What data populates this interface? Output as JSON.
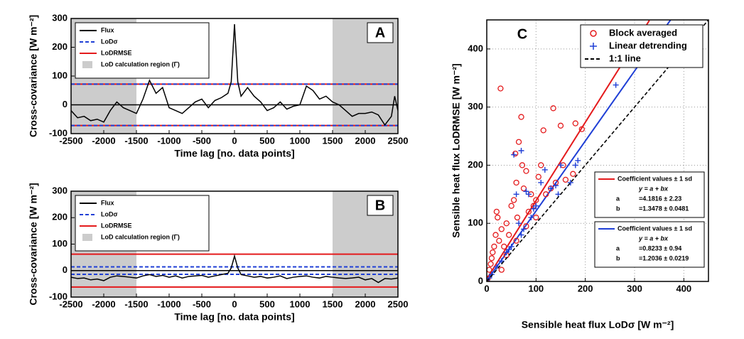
{
  "chart_data": [
    {
      "type": "line",
      "label": "A",
      "xlabel": "Time lag [no. data points]",
      "ylabel": "Cross-covariance [W m⁻²]",
      "xlim": [
        -2500,
        2500
      ],
      "ylim": [
        -100,
        300
      ],
      "xticks": [
        -2500,
        -2000,
        -1500,
        -1000,
        -500,
        0,
        500,
        1000,
        1500,
        2000,
        2500
      ],
      "yticks": [
        -100,
        0,
        100,
        200,
        300
      ],
      "series": [
        {
          "name": "Flux",
          "color": "#000000",
          "style": "solid",
          "x": [
            -2500,
            -2400,
            -2300,
            -2200,
            -2100,
            -2000,
            -1900,
            -1800,
            -1700,
            -1600,
            -1500,
            -1400,
            -1300,
            -1200,
            -1100,
            -1000,
            -900,
            -800,
            -700,
            -600,
            -500,
            -400,
            -300,
            -200,
            -100,
            -50,
            0,
            50,
            100,
            200,
            300,
            400,
            500,
            600,
            700,
            800,
            900,
            1000,
            1100,
            1200,
            1300,
            1400,
            1500,
            1600,
            1700,
            1800,
            1900,
            2000,
            2100,
            2200,
            2300,
            2400,
            2450,
            2500
          ],
          "values": [
            -20,
            -45,
            -40,
            -55,
            -50,
            -60,
            -20,
            10,
            -10,
            -20,
            -30,
            20,
            85,
            40,
            60,
            -10,
            -20,
            -30,
            -10,
            10,
            20,
            -10,
            15,
            25,
            40,
            80,
            280,
            80,
            30,
            60,
            30,
            10,
            -20,
            -10,
            10,
            -15,
            -5,
            0,
            65,
            50,
            20,
            30,
            10,
            0,
            -20,
            -40,
            -30,
            -30,
            -25,
            -35,
            -70,
            -40,
            30,
            -20
          ]
        },
        {
          "name": "LoDσ",
          "color": "#1f3fd6",
          "style": "dashed",
          "levels": [
            72,
            -72
          ]
        },
        {
          "name": "LoDRMSE",
          "color": "#e41a1c",
          "style": "solid",
          "levels": [
            72,
            -72
          ]
        }
      ],
      "region_name": "LoD calculation region (Γ)",
      "regions": [
        [
          -2500,
          -1500
        ],
        [
          1500,
          2500
        ]
      ]
    },
    {
      "type": "line",
      "label": "B",
      "xlabel": "Time lag [no. data points]",
      "ylabel": "Cross-covariance [W m⁻²]",
      "xlim": [
        -2500,
        2500
      ],
      "ylim": [
        -100,
        300
      ],
      "xticks": [
        -2500,
        -2000,
        -1500,
        -1000,
        -500,
        0,
        500,
        1000,
        1500,
        2000,
        2500
      ],
      "yticks": [
        -100,
        0,
        100,
        200,
        300
      ],
      "series": [
        {
          "name": "Flux",
          "color": "#000000",
          "style": "solid",
          "x": [
            -2500,
            -2400,
            -2300,
            -2200,
            -2100,
            -2000,
            -1900,
            -1800,
            -1700,
            -1600,
            -1500,
            -1400,
            -1300,
            -1200,
            -1100,
            -1000,
            -900,
            -800,
            -700,
            -600,
            -500,
            -400,
            -300,
            -200,
            -100,
            -50,
            0,
            50,
            100,
            200,
            300,
            400,
            500,
            600,
            700,
            800,
            900,
            1000,
            1100,
            1200,
            1300,
            1400,
            1500,
            1600,
            1700,
            1800,
            1900,
            2000,
            2100,
            2200,
            2300,
            2400,
            2500
          ],
          "values": [
            -25,
            -30,
            -28,
            -35,
            -32,
            -38,
            -25,
            -20,
            -22,
            -25,
            -28,
            -20,
            -15,
            -22,
            -18,
            -25,
            -20,
            -28,
            -22,
            -20,
            -18,
            -25,
            -20,
            -15,
            -10,
            10,
            55,
            10,
            -15,
            -20,
            -25,
            -22,
            -28,
            -25,
            -20,
            -30,
            -25,
            -22,
            -20,
            -25,
            -28,
            -22,
            -25,
            -28,
            -30,
            -28,
            -25,
            -35,
            -30,
            -45,
            -30,
            -32,
            -28
          ]
        },
        {
          "name": "LoDσ",
          "color": "#1f3fd6",
          "style": "dashed",
          "levels": [
            14,
            -14
          ]
        },
        {
          "name": "LoDRMSE",
          "color": "#e41a1c",
          "style": "solid",
          "levels": [
            62,
            -62
          ]
        }
      ],
      "region_name": "LoD calculation region (Γ)",
      "regions": [
        [
          -2500,
          -1500
        ],
        [
          1500,
          2500
        ]
      ]
    },
    {
      "type": "scatter",
      "label": "C",
      "xlabel": "Sensible heat flux LoDσ [W m⁻²]",
      "ylabel": "Sensible heat flux LoDRMSE [W m⁻²]",
      "xlim": [
        0,
        450
      ],
      "ylim": [
        0,
        450
      ],
      "xticks": [
        0,
        100,
        200,
        300,
        400
      ],
      "yticks": [
        0,
        100,
        200,
        300,
        400
      ],
      "grid": true,
      "series": [
        {
          "name": "Block averaged",
          "color": "#e41a1c",
          "marker": "circle",
          "x": [
            2,
            5,
            8,
            10,
            12,
            15,
            18,
            20,
            22,
            25,
            28,
            30,
            35,
            40,
            45,
            50,
            55,
            58,
            60,
            62,
            65,
            70,
            72,
            75,
            80,
            85,
            90,
            95,
            100,
            105,
            110,
            115,
            120,
            130,
            135,
            140,
            150,
            155,
            160,
            175,
            180,
            193,
            30,
            40,
            60,
            80,
            100
          ],
          "values": [
            5,
            20,
            30,
            40,
            50,
            60,
            80,
            120,
            110,
            70,
            332,
            90,
            60,
            100,
            80,
            130,
            140,
            220,
            170,
            110,
            240,
            283,
            200,
            160,
            190,
            120,
            150,
            130,
            140,
            180,
            200,
            260,
            150,
            160,
            298,
            170,
            268,
            200,
            175,
            185,
            272,
            262,
            20,
            45,
            70,
            95,
            110
          ]
        },
        {
          "name": "Linear detrending",
          "color": "#1f3fd6",
          "marker": "plus",
          "x": [
            5,
            10,
            20,
            30,
            40,
            50,
            55,
            60,
            65,
            70,
            75,
            80,
            85,
            90,
            95,
            100,
            110,
            118,
            130,
            140,
            145,
            150,
            170,
            180,
            185,
            262,
            45,
            70
          ],
          "values": [
            6,
            12,
            25,
            35,
            50,
            60,
            218,
            150,
            100,
            225,
            90,
            155,
            150,
            110,
            125,
            130,
            170,
            192,
            160,
            165,
            150,
            200,
            170,
            200,
            208,
            338,
            55,
            80
          ]
        },
        {
          "name": "1:1 line",
          "color": "#000000",
          "style": "dashed",
          "x": [
            0,
            450
          ],
          "values": [
            0,
            450
          ]
        }
      ],
      "fits": [
        {
          "color": "#e41a1c",
          "title": "Coefficient values ± 1 sd",
          "equation": "y = a + bx",
          "a_name": "a",
          "a_text": "=4.1816 ± 2.23",
          "b_name": "b",
          "b_text": "=1.3478 ± 0.0481",
          "x": [
            0,
            330
          ],
          "values": [
            4.2,
            449
          ]
        },
        {
          "color": "#1f3fd6",
          "title": "Coefficient values ± 1 sd",
          "equation": "y = a + bx",
          "a_name": "a",
          "a_text": "=0.8233 ± 0.94",
          "b_name": "b",
          "b_text": "=1.2036 ± 0.0219",
          "x": [
            0,
            373
          ],
          "values": [
            0.8,
            450
          ]
        }
      ]
    }
  ]
}
